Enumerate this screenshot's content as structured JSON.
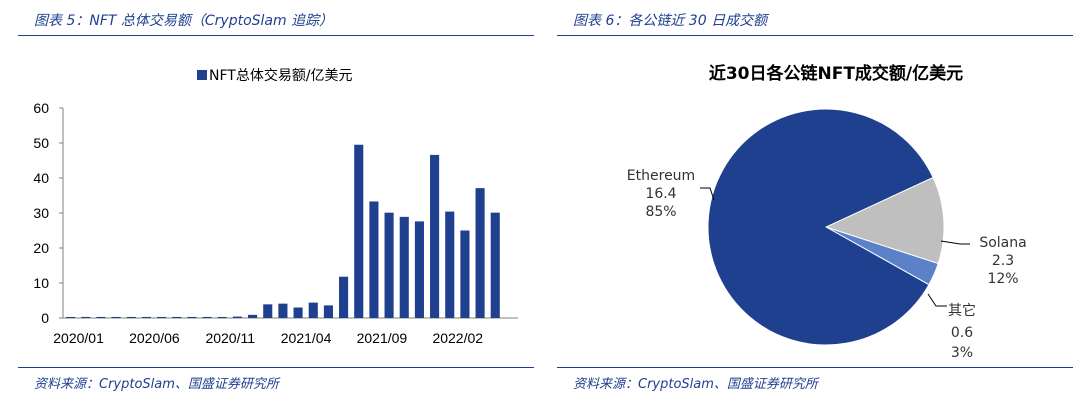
{
  "left_panel": {
    "figure_title": "图表 5：NFT 总体交易额（CryptoSlam 追踪）",
    "source": "资料来源：CryptoSlam、国盛证券研究所"
  },
  "right_panel": {
    "figure_title": "图表 6：各公链近 30 日成交额",
    "source": "资料来源：CryptoSlam、国盛证券研究所"
  },
  "colors": {
    "accent": "#1f3f8f",
    "bar": "#1f3f8f",
    "ethereum": "#1f3f8f",
    "solana": "#bfbfbf",
    "other": "#5b82c8"
  },
  "chart_data": [
    {
      "type": "bar",
      "legend": "NFT总体交易额/亿美元",
      "legend_placement": "top",
      "ylim": [
        0,
        60
      ],
      "yticks": [
        0,
        10,
        20,
        30,
        40,
        50,
        60
      ],
      "categories": [
        "2020/01",
        "2020/02",
        "2020/03",
        "2020/04",
        "2020/05",
        "2020/06",
        "2020/07",
        "2020/08",
        "2020/09",
        "2020/10",
        "2020/11",
        "2020/12",
        "2021/01",
        "2021/02",
        "2021/03",
        "2021/04",
        "2021/05",
        "2021/06",
        "2021/07",
        "2021/08",
        "2021/09",
        "2021/10",
        "2021/11",
        "2021/12",
        "2022/01",
        "2022/02",
        "2022/03",
        "2022/04",
        "2022/05",
        "2022/06"
      ],
      "x_tick_labels": [
        "2020/01",
        "2020/06",
        "2020/11",
        "2021/04",
        "2021/09",
        "2022/02"
      ],
      "values": [
        0.3,
        0.3,
        0.3,
        0.3,
        0.3,
        0.3,
        0.3,
        0.3,
        0.3,
        0.3,
        0.3,
        0.4,
        0.9,
        3.9,
        4.1,
        3.0,
        4.4,
        3.6,
        11.8,
        49.5,
        33.3,
        30.1,
        28.9,
        27.6,
        46.6,
        30.4,
        25.0,
        37.1,
        30.1,
        0
      ],
      "grid": false
    },
    {
      "type": "pie",
      "title": "近30日各公链NFT成交额/亿美元",
      "slices": [
        {
          "name": "Ethereum",
          "value": 16.4,
          "pct": "85%",
          "color": "#1f3f8f"
        },
        {
          "name": "Solana",
          "value": 2.3,
          "pct": "12%",
          "color": "#bfbfbf"
        },
        {
          "name": "其它",
          "value": 0.6,
          "pct": "3%",
          "color": "#5b82c8"
        }
      ]
    }
  ]
}
